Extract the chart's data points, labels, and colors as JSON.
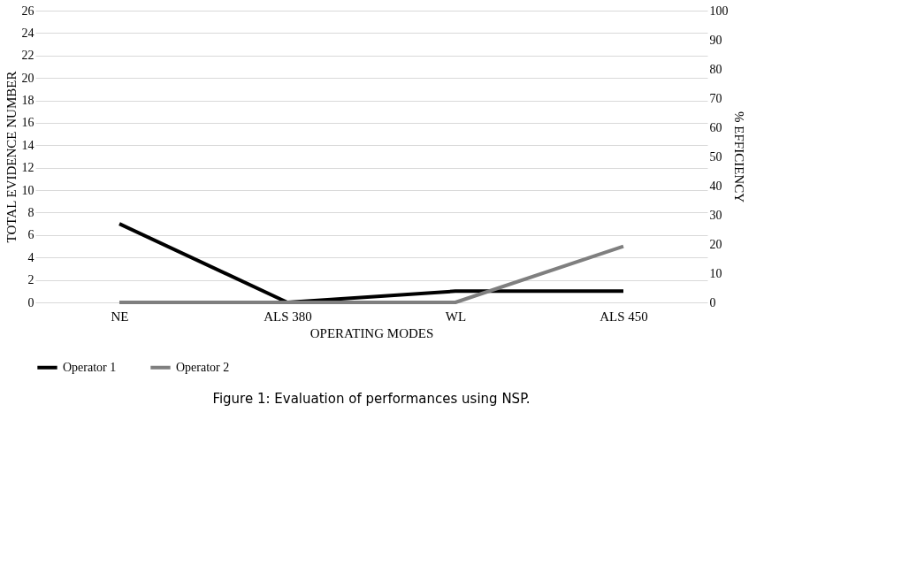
{
  "chart_data": {
    "type": "line",
    "xlabel": "OPERATING MODES",
    "ylabel": "TOTAL EVIDENCE NUMBER",
    "y2label": "% EFFICIENCY",
    "categories": [
      "NE",
      "ALS 380",
      "WL",
      "ALS 450"
    ],
    "series": [
      {
        "name": "Operator 1",
        "color": "#000000",
        "values": [
          7,
          0,
          1,
          1
        ]
      },
      {
        "name": "Operator 2",
        "color": "#7f7f7f",
        "values": [
          0,
          0,
          0,
          5
        ]
      }
    ],
    "ylim": [
      0,
      26
    ],
    "yticks": [
      0,
      2,
      4,
      6,
      8,
      10,
      12,
      14,
      16,
      18,
      20,
      22,
      24,
      26
    ],
    "y2lim": [
      0,
      100
    ],
    "y2ticks": [
      0,
      10,
      20,
      30,
      40,
      50,
      60,
      70,
      80,
      90,
      100
    ],
    "grid": "y",
    "legend": "bottom",
    "marker": "none",
    "line_style": "solid",
    "annotations": [
      "Figure 1: Evaluation of performances using NSP."
    ]
  }
}
